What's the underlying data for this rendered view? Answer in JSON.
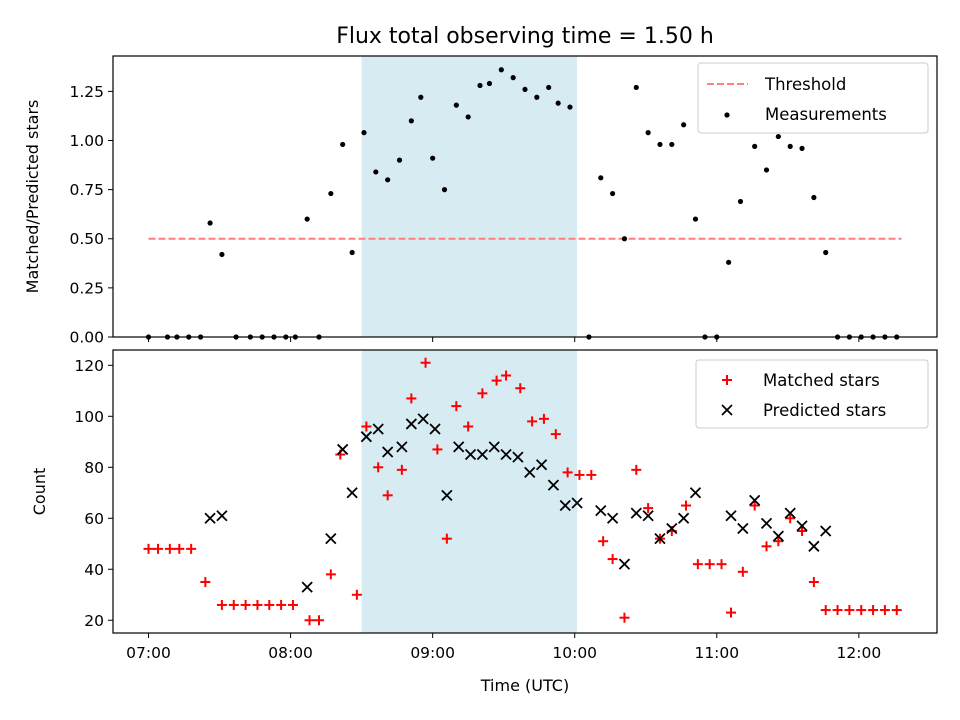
{
  "chart_data": [
    {
      "type": "scatter",
      "title": "Flux total observing time = 1.50 h",
      "xlabel": "",
      "ylabel": "Matched/Predicted stars",
      "xlim": [
        "06:45",
        "12:33"
      ],
      "ylim": [
        0,
        1.43
      ],
      "yticks": [
        0.0,
        0.25,
        0.5,
        0.75,
        1.0,
        1.25
      ],
      "ytick_labels": [
        "0.00",
        "0.25",
        "0.50",
        "0.75",
        "1.00",
        "1.25"
      ],
      "grid": false,
      "legend": "top-right",
      "highlight_span": [
        "08:30",
        "10:01"
      ],
      "highlight_color": "#add8e6",
      "threshold": {
        "name": "Threshold",
        "value": 0.5,
        "x": [
          "07:00",
          "12:18"
        ],
        "color": "#ff7f7f",
        "style": "dashed"
      },
      "series": [
        {
          "name": "Measurements",
          "marker": "dot",
          "color": "#000000",
          "points": [
            [
              "07:00",
              0
            ],
            [
              "07:08",
              0
            ],
            [
              "07:12",
              0
            ],
            [
              "07:17",
              0
            ],
            [
              "07:22",
              0
            ],
            [
              "07:26",
              0.58
            ],
            [
              "07:31",
              0.42
            ],
            [
              "07:37",
              0
            ],
            [
              "07:43",
              0
            ],
            [
              "07:48",
              0
            ],
            [
              "07:53",
              0
            ],
            [
              "07:58",
              0
            ],
            [
              "08:02",
              0
            ],
            [
              "08:07",
              0.6
            ],
            [
              "08:12",
              0
            ],
            [
              "08:17",
              0.73
            ],
            [
              "08:22",
              0.98
            ],
            [
              "08:26",
              0.43
            ],
            [
              "08:31",
              1.04
            ],
            [
              "08:36",
              0.84
            ],
            [
              "08:41",
              0.8
            ],
            [
              "08:46",
              0.9
            ],
            [
              "08:51",
              1.1
            ],
            [
              "08:55",
              1.22
            ],
            [
              "09:00",
              0.91
            ],
            [
              "09:05",
              0.75
            ],
            [
              "09:10",
              1.18
            ],
            [
              "09:15",
              1.12
            ],
            [
              "09:20",
              1.28
            ],
            [
              "09:24",
              1.29
            ],
            [
              "09:29",
              1.36
            ],
            [
              "09:34",
              1.32
            ],
            [
              "09:39",
              1.26
            ],
            [
              "09:44",
              1.22
            ],
            [
              "09:49",
              1.27
            ],
            [
              "09:53",
              1.19
            ],
            [
              "09:58",
              1.17
            ],
            [
              "10:06",
              0
            ],
            [
              "10:11",
              0.81
            ],
            [
              "10:16",
              0.73
            ],
            [
              "10:21",
              0.5
            ],
            [
              "10:26",
              1.27
            ],
            [
              "10:31",
              1.04
            ],
            [
              "10:36",
              0.98
            ],
            [
              "10:41",
              0.98
            ],
            [
              "10:46",
              1.08
            ],
            [
              "10:51",
              0.6
            ],
            [
              "10:55",
              0
            ],
            [
              "11:00",
              0
            ],
            [
              "11:05",
              0.38
            ],
            [
              "11:10",
              0.69
            ],
            [
              "11:16",
              0.97
            ],
            [
              "11:21",
              0.85
            ],
            [
              "11:26",
              1.02
            ],
            [
              "11:31",
              0.97
            ],
            [
              "11:36",
              0.96
            ],
            [
              "11:41",
              0.71
            ],
            [
              "11:46",
              0.43
            ],
            [
              "11:51",
              0
            ],
            [
              "11:56",
              0
            ],
            [
              "12:01",
              0
            ],
            [
              "12:06",
              0
            ],
            [
              "12:11",
              0
            ],
            [
              "12:16",
              0
            ]
          ]
        }
      ]
    },
    {
      "type": "scatter",
      "title": "",
      "xlabel": "Time (UTC)",
      "ylabel": "Count",
      "xlim": [
        "06:45",
        "12:33"
      ],
      "ylim": [
        15,
        126
      ],
      "yticks": [
        20,
        40,
        60,
        80,
        100,
        120
      ],
      "ytick_labels": [
        "20",
        "40",
        "60",
        "80",
        "100",
        "120"
      ],
      "xticks": [
        "07:00",
        "08:00",
        "09:00",
        "10:00",
        "11:00",
        "12:00"
      ],
      "grid": false,
      "legend": "top-right",
      "highlight_span": [
        "08:30",
        "10:01"
      ],
      "highlight_color": "#add8e6",
      "series": [
        {
          "name": "Matched stars",
          "marker": "plus",
          "color": "#ff0000",
          "points": [
            [
              "07:00",
              48
            ],
            [
              "07:04",
              48
            ],
            [
              "07:09",
              48
            ],
            [
              "07:13",
              48
            ],
            [
              "07:18",
              48
            ],
            [
              "07:24",
              35
            ],
            [
              "07:31",
              26
            ],
            [
              "07:36",
              26
            ],
            [
              "07:41",
              26
            ],
            [
              "07:46",
              26
            ],
            [
              "07:51",
              26
            ],
            [
              "07:56",
              26
            ],
            [
              "08:01",
              26
            ],
            [
              "08:08",
              20
            ],
            [
              "08:12",
              20
            ],
            [
              "08:17",
              38
            ],
            [
              "08:21",
              85
            ],
            [
              "08:28",
              30
            ],
            [
              "08:32",
              96
            ],
            [
              "08:37",
              80
            ],
            [
              "08:41",
              69
            ],
            [
              "08:47",
              79
            ],
            [
              "08:51",
              107
            ],
            [
              "08:57",
              121
            ],
            [
              "09:02",
              87
            ],
            [
              "09:06",
              52
            ],
            [
              "09:10",
              104
            ],
            [
              "09:15",
              96
            ],
            [
              "09:21",
              109
            ],
            [
              "09:27",
              114
            ],
            [
              "09:31",
              116
            ],
            [
              "09:37",
              111
            ],
            [
              "09:42",
              98
            ],
            [
              "09:47",
              99
            ],
            [
              "09:52",
              93
            ],
            [
              "09:57",
              78
            ],
            [
              "10:02",
              77
            ],
            [
              "10:07",
              77
            ],
            [
              "10:12",
              51
            ],
            [
              "10:16",
              44
            ],
            [
              "10:21",
              21
            ],
            [
              "10:26",
              79
            ],
            [
              "10:31",
              64
            ],
            [
              "10:36",
              52
            ],
            [
              "10:41",
              55
            ],
            [
              "10:47",
              65
            ],
            [
              "10:52",
              42
            ],
            [
              "10:57",
              42
            ],
            [
              "11:02",
              42
            ],
            [
              "11:06",
              23
            ],
            [
              "11:11",
              39
            ],
            [
              "11:16",
              65
            ],
            [
              "11:21",
              49
            ],
            [
              "11:26",
              51
            ],
            [
              "11:31",
              60
            ],
            [
              "11:36",
              55
            ],
            [
              "11:41",
              35
            ],
            [
              "11:46",
              24
            ],
            [
              "11:51",
              24
            ],
            [
              "11:56",
              24
            ],
            [
              "12:01",
              24
            ],
            [
              "12:06",
              24
            ],
            [
              "12:11",
              24
            ],
            [
              "12:16",
              24
            ]
          ]
        },
        {
          "name": "Predicted stars",
          "marker": "x",
          "color": "#000000",
          "points": [
            [
              "07:26",
              60
            ],
            [
              "07:31",
              61
            ],
            [
              "08:07",
              33
            ],
            [
              "08:17",
              52
            ],
            [
              "08:22",
              87
            ],
            [
              "08:26",
              70
            ],
            [
              "08:32",
              92
            ],
            [
              "08:37",
              95
            ],
            [
              "08:41",
              86
            ],
            [
              "08:47",
              88
            ],
            [
              "08:51",
              97
            ],
            [
              "08:56",
              99
            ],
            [
              "09:01",
              95
            ],
            [
              "09:06",
              69
            ],
            [
              "09:11",
              88
            ],
            [
              "09:16",
              85
            ],
            [
              "09:21",
              85
            ],
            [
              "09:26",
              88
            ],
            [
              "09:31",
              85
            ],
            [
              "09:36",
              84
            ],
            [
              "09:41",
              78
            ],
            [
              "09:46",
              81
            ],
            [
              "09:51",
              73
            ],
            [
              "09:56",
              65
            ],
            [
              "10:01",
              66
            ],
            [
              "10:11",
              63
            ],
            [
              "10:16",
              60
            ],
            [
              "10:21",
              42
            ],
            [
              "10:26",
              62
            ],
            [
              "10:31",
              61
            ],
            [
              "10:36",
              52
            ],
            [
              "10:41",
              56
            ],
            [
              "10:46",
              60
            ],
            [
              "10:51",
              70
            ],
            [
              "11:06",
              61
            ],
            [
              "11:11",
              56
            ],
            [
              "11:16",
              67
            ],
            [
              "11:21",
              58
            ],
            [
              "11:26",
              53
            ],
            [
              "11:31",
              62
            ],
            [
              "11:36",
              57
            ],
            [
              "11:41",
              49
            ],
            [
              "11:46",
              55
            ]
          ]
        }
      ]
    }
  ]
}
